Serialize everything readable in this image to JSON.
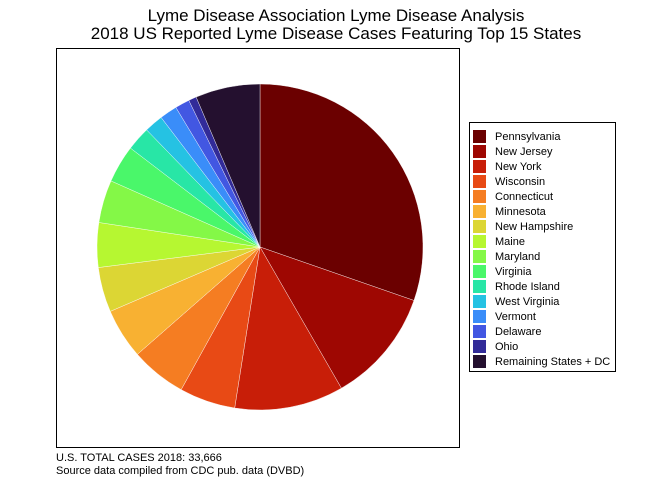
{
  "chart_data": {
    "type": "pie",
    "title": "Lyme Disease Association Lyme Disease Analysis",
    "subtitle": "2018 US Reported Lyme Disease Cases Featuring Top 15 States",
    "legend_position": "right",
    "categories": [
      "Pennsylvania",
      "New Jersey",
      "New York",
      "Wisconsin",
      "Connecticut",
      "Minnesota",
      "New Hampshire",
      "Maine",
      "Maryland",
      "Virginia",
      "Rhode Island",
      "West Virginia",
      "Vermont",
      "Delaware",
      "Ohio",
      "Remaining States + DC"
    ],
    "values": [
      10208,
      3823,
      3638,
      1869,
      1859,
      1677,
      1498,
      1487,
      1427,
      1257,
      801,
      629,
      587,
      485,
      264,
      2157
    ],
    "colors": [
      "#6b0000",
      "#9e0702",
      "#c81e08",
      "#e84a15",
      "#f57d22",
      "#f8b132",
      "#dcd634",
      "#b6f731",
      "#84f847",
      "#4af76a",
      "#28e6a6",
      "#25c2e3",
      "#3a8df9",
      "#4257e2",
      "#322b99",
      "#24102f"
    ]
  },
  "footer": {
    "total": "U.S. TOTAL CASES 2018: 33,666",
    "source": "Source data compiled from CDC pub. data (DVBD)"
  }
}
